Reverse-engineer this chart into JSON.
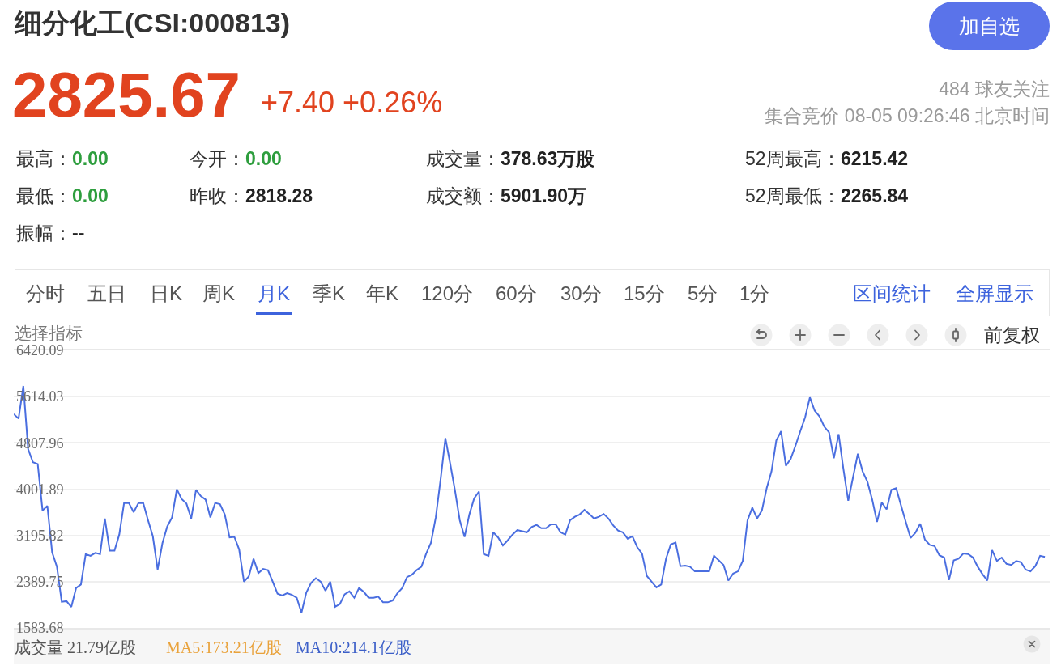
{
  "chart_data": [
    {
      "type": "other",
      "title": "细分化工(CSI:000813)",
      "annotations": [
        "2825.67",
        "+7.40 +0.26%",
        "484 球友关注",
        "集合竞价 08-05 09:26:46 北京时间",
        "最高：",
        "0.00",
        "今开：",
        "0.00",
        "成交量：",
        "378.63万股",
        "52周最高：",
        "6215.42",
        "最低：",
        "0.00",
        "昨收：",
        "2818.28",
        "成交额：",
        "5901.90万",
        "52周最低：",
        "2265.84",
        "振幅：",
        "--",
        "加自选",
        "分时",
        "五日",
        "日K",
        "周K",
        "月K",
        "季K",
        "年K",
        "120分",
        "60分",
        "30分",
        "15分",
        "5分",
        "1分",
        "区间统计",
        "全屏显示",
        "选择指标",
        "前复权"
      ]
    },
    {
      "type": "line",
      "categories": [
        null,
        null,
        null,
        null,
        null,
        null,
        null,
        null,
        null,
        null,
        null,
        null,
        null,
        null,
        null,
        null,
        null,
        null,
        null,
        null,
        null,
        null,
        null,
        null,
        null,
        null,
        null,
        null,
        null,
        null,
        null,
        null,
        null,
        null,
        null,
        null,
        null,
        null,
        null,
        null,
        null,
        null,
        null,
        null,
        null,
        null,
        null,
        null,
        null,
        null,
        null,
        null,
        null,
        null,
        null,
        null,
        null,
        null,
        null,
        null,
        null,
        null,
        null,
        null,
        null,
        null,
        null,
        null,
        null,
        null,
        null,
        null,
        null,
        null,
        null,
        null,
        null,
        null,
        null,
        null,
        null,
        null,
        null,
        null,
        null,
        null,
        null,
        null,
        null,
        null,
        null,
        null,
        null,
        null,
        null,
        null,
        null,
        null,
        null,
        null,
        null,
        null,
        null,
        null,
        null,
        null,
        null,
        null,
        null,
        null,
        null,
        null,
        null,
        null,
        null,
        null,
        null,
        null,
        null,
        null,
        null,
        null,
        null,
        null,
        null,
        null,
        null,
        null,
        null,
        null,
        null,
        null,
        null,
        null,
        null,
        null,
        null,
        null,
        null,
        null,
        null,
        null,
        null,
        null,
        null,
        null,
        null,
        null,
        null,
        null,
        null,
        null,
        null,
        null,
        null,
        null,
        null,
        null,
        null,
        null,
        null,
        null,
        null,
        null,
        null,
        null,
        null,
        null,
        null,
        null,
        null,
        null,
        null,
        null,
        null,
        null,
        null,
        null,
        null,
        null,
        null,
        null,
        null,
        null,
        null,
        null,
        null,
        null,
        null,
        null,
        null,
        null,
        null,
        null,
        null,
        null,
        null,
        null,
        null,
        null,
        null,
        null,
        null,
        null,
        null,
        null,
        null,
        null,
        null,
        null,
        null,
        null,
        null,
        null,
        null,
        null
      ],
      "values": [
        5310,
        5230,
        5800,
        4700,
        4470,
        4440,
        3630,
        3710,
        2900,
        2650,
        2040,
        2050,
        1950,
        2280,
        2340,
        2870,
        2840,
        2890,
        2870,
        3490,
        2930,
        2930,
        3210,
        3760,
        3760,
        3600,
        3760,
        3760,
        3460,
        3180,
        2600,
        3060,
        3350,
        3510,
        4000,
        3830,
        3750,
        3490,
        3990,
        3880,
        3820,
        3510,
        3760,
        3740,
        3560,
        3160,
        3170,
        2950,
        2390,
        2480,
        2790,
        2540,
        2610,
        2590,
        2390,
        2180,
        2150,
        2190,
        2160,
        2110,
        1850,
        2200,
        2370,
        2450,
        2390,
        2230,
        2390,
        1950,
        2000,
        2170,
        2220,
        2110,
        2280,
        2210,
        2110,
        2110,
        2130,
        2030,
        2030,
        2060,
        2190,
        2280,
        2470,
        2510,
        2590,
        2650,
        2880,
        3070,
        3510,
        4170,
        4890,
        4450,
        3980,
        3460,
        3170,
        3560,
        3840,
        3960,
        2870,
        2840,
        3250,
        3160,
        3020,
        3110,
        3210,
        3290,
        3270,
        3250,
        3340,
        3380,
        3320,
        3320,
        3390,
        3390,
        3250,
        3210,
        3460,
        3520,
        3560,
        3640,
        3570,
        3490,
        3520,
        3570,
        3490,
        3370,
        3280,
        3250,
        3140,
        3180,
        2990,
        2880,
        2490,
        2390,
        2290,
        2340,
        2790,
        3040,
        3070,
        2660,
        2670,
        2650,
        2570,
        2570,
        2570,
        2570,
        2840,
        2760,
        2680,
        2410,
        2530,
        2570,
        2750,
        3460,
        3680,
        3490,
        3630,
        4020,
        4310,
        4850,
        5010,
        4410,
        4530,
        4760,
        5010,
        5250,
        5600,
        5370,
        5270,
        5090,
        4990,
        4540,
        4960,
        4350,
        3800,
        4210,
        4620,
        4310,
        4130,
        3820,
        3430,
        3770,
        3650,
        3990,
        4020,
        3720,
        3430,
        3150,
        3240,
        3400,
        3120,
        3030,
        3010,
        2850,
        2810,
        2420,
        2760,
        2790,
        2880,
        2870,
        2810,
        2650,
        2520,
        2410,
        2940,
        2750,
        2810,
        2700,
        2680,
        2750,
        2730,
        2600,
        2570,
        2660,
        2840,
        2820
      ],
      "color": "#4a6ee0",
      "ylim": [
        1583.68,
        6420.09
      ],
      "yticks": [
        1583.68,
        2389.75,
        3195.82,
        4001.89,
        4807.96,
        5614.03,
        6420.09
      ],
      "grid": "y",
      "tick_labels": "y",
      "line_style": "solid",
      "annotations": [
        "成交量 21.79亿股",
        "MA5:173.21亿股",
        "MA10:214.1亿股"
      ]
    }
  ]
}
